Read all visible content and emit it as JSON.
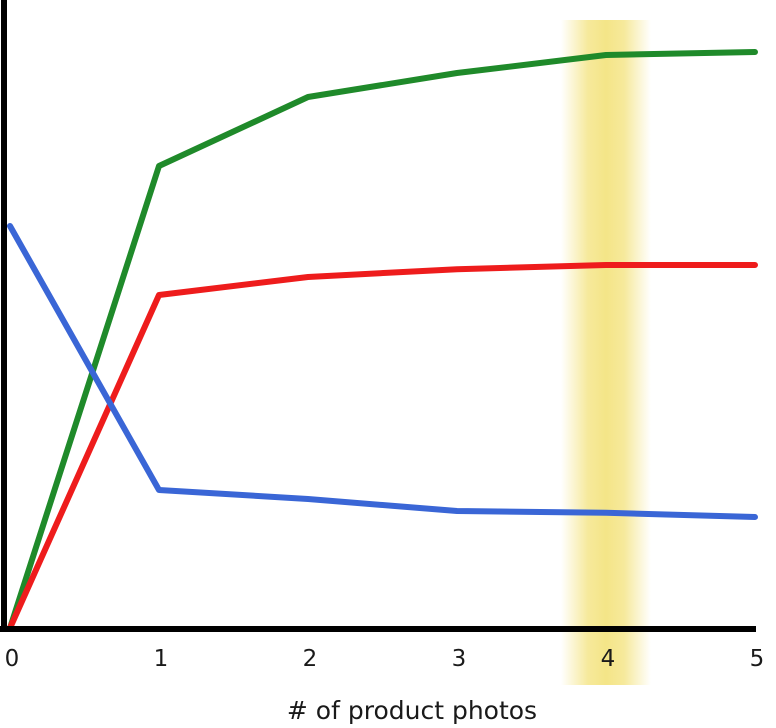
{
  "chart_data": {
    "type": "line",
    "xlabel": "# of product photos",
    "ylabel": "",
    "title": "",
    "xlim": [
      0,
      5
    ],
    "ylim": [
      0,
      100
    ],
    "x_ticks": [
      "0",
      "1",
      "2",
      "3",
      "4",
      "5"
    ],
    "grid": false,
    "legend": "none",
    "highlight": {
      "x": 4,
      "color": "#f3e27a"
    },
    "series": [
      {
        "color": "#1f8a2a",
        "x": [
          0,
          1,
          2,
          3,
          4,
          5
        ],
        "values": [
          0,
          77,
          88.5,
          92.5,
          95.5,
          96
        ]
      },
      {
        "color": "#ee1c1c",
        "x": [
          0,
          1,
          2,
          3,
          4,
          5
        ],
        "values": [
          0,
          55.5,
          58.5,
          59.8,
          60.5,
          60.5
        ]
      },
      {
        "color": "#3a66d6",
        "x": [
          0,
          1,
          2,
          3,
          4,
          5
        ],
        "values": [
          67,
          23,
          21.5,
          19.5,
          19.2,
          18.5
        ]
      }
    ]
  }
}
